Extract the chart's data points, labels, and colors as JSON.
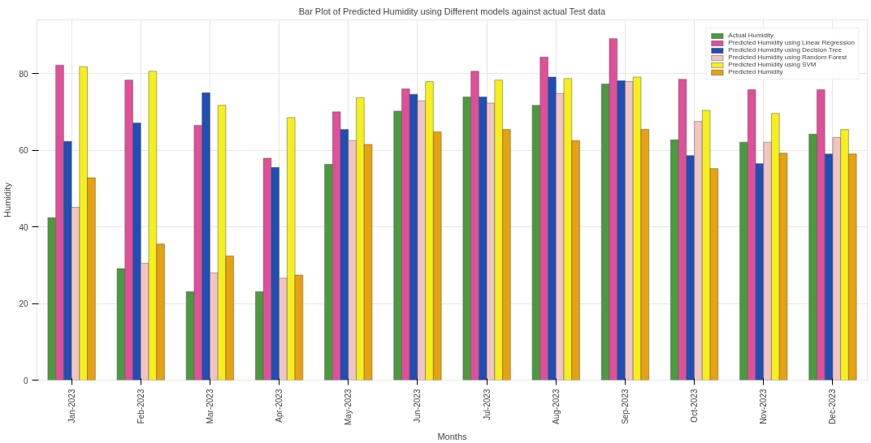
{
  "chart_data": {
    "type": "bar",
    "title": "Bar Plot of Predicted Humidity using Different models against actual Test data",
    "xlabel": "Months",
    "ylabel": "Humidity",
    "categories": [
      "Jan-2023",
      "Feb-2023",
      "Mar-2023",
      "Apr-2023",
      "May-2023",
      "Jun-2023",
      "Jul-2023",
      "Aug-2023",
      "Sep-2023",
      "Oct-2023",
      "Nov-2023",
      "Dec-2023"
    ],
    "ylim": [
      0,
      94
    ],
    "yticks": [
      0,
      20,
      40,
      60,
      80
    ],
    "grid": true,
    "legend": "top right",
    "series": [
      {
        "name": "Actual Humidity",
        "color": "#4c9a3f",
        "values": [
          42.4,
          29.1,
          23.1,
          23.1,
          56.3,
          70.2,
          73.9,
          71.7,
          77.3,
          62.7,
          62.1,
          64.2
        ]
      },
      {
        "name": "Predicted Humidity using Linear Regression",
        "color": "#e0509a",
        "values": [
          82.2,
          78.3,
          66.5,
          57.9,
          70.0,
          76.0,
          80.6,
          84.3,
          89.1,
          78.5,
          75.8,
          75.8
        ]
      },
      {
        "name": "Predicted Humidity using Decision Tree",
        "color": "#1f4eb4",
        "values": [
          62.3,
          67.1,
          75.0,
          55.5,
          65.4,
          74.6,
          73.9,
          79.1,
          78.1,
          58.6,
          56.5,
          59.0
        ]
      },
      {
        "name": "Predicted Humidity using Random Forest",
        "color": "#f2c4c4",
        "values": [
          45.1,
          30.5,
          28.0,
          26.6,
          62.5,
          72.9,
          72.3,
          74.8,
          77.9,
          67.5,
          62.1,
          63.3
        ]
      },
      {
        "name": "Predicted Humidity using SVM",
        "color": "#f5ef1e",
        "values": [
          81.8,
          80.6,
          71.7,
          68.5,
          73.7,
          77.9,
          78.3,
          78.7,
          79.1,
          70.4,
          69.6,
          65.4
        ]
      },
      {
        "name": "Predicted Humidity",
        "color": "#e8a10f",
        "values": [
          52.8,
          35.5,
          32.4,
          27.4,
          61.5,
          64.8,
          65.4,
          62.5,
          65.4,
          55.2,
          59.2,
          59.0
        ]
      }
    ]
  }
}
